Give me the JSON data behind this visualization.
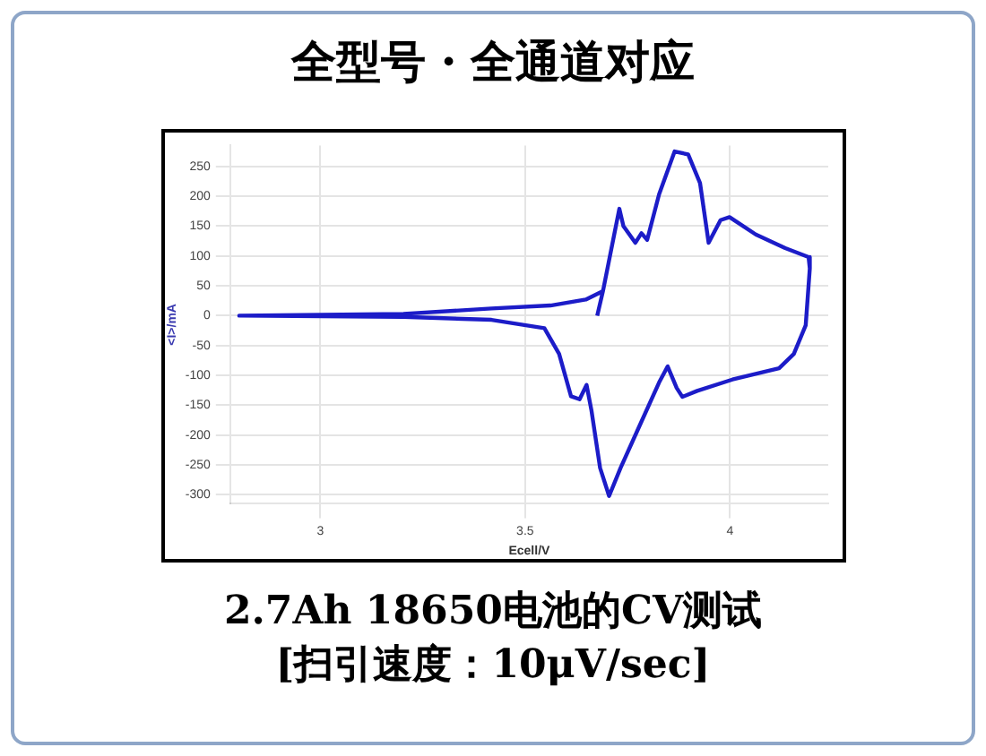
{
  "chart_data": {
    "type": "line",
    "title": "全型号・全通道对应",
    "xlabel": "Ecell/V",
    "ylabel": "<I>/mA",
    "annotations": [
      "2.7Ah 18650电池的CV测试",
      "[扫引速度：10μV/sec]"
    ],
    "x": [
      3.676,
      3.69,
      3.73,
      3.74,
      3.769,
      3.784,
      3.798,
      3.827,
      3.865,
      3.898,
      3.927,
      3.948,
      3.977,
      3.999,
      4.063,
      4.135,
      4.192,
      4.195,
      4.185,
      4.156,
      4.12,
      4.006,
      3.92,
      3.884,
      3.87,
      3.848,
      3.827,
      3.777,
      3.733,
      3.705,
      3.683,
      3.662,
      3.65,
      3.633,
      3.612,
      3.583,
      3.547,
      3.418,
      3.203,
      2.802,
      3.203,
      3.418,
      3.562,
      3.648,
      3.69
    ],
    "series": [
      {
        "color": "#1c1cc8",
        "values": [
          0,
          41,
          179,
          150,
          122,
          138,
          127,
          203,
          275,
          270,
          222,
          122,
          160,
          165,
          136,
          113,
          98,
          79,
          -16,
          -64,
          -88,
          -107,
          -126,
          -136,
          -121,
          -85,
          -112,
          -188,
          -255,
          -302,
          -255,
          -159,
          -116,
          -140,
          -135,
          -64,
          -21,
          -7,
          -2,
          0,
          3,
          12,
          17,
          27,
          41
        ]
      }
    ],
    "xlim": [
      2.78,
      4.24
    ],
    "xticks": [
      3,
      3.5,
      4
    ],
    "ylim": [
      -315,
      285
    ],
    "yticks": [
      -300,
      -250,
      -200,
      -150,
      -100,
      -50,
      0,
      50,
      100,
      150,
      200,
      250
    ],
    "grid": true,
    "legend": false,
    "marker": "none",
    "line_style": "solid"
  }
}
